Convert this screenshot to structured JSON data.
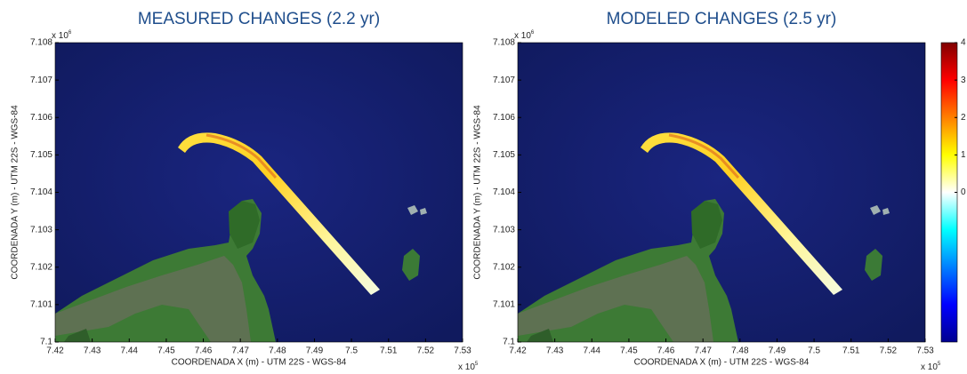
{
  "chart_data": [
    {
      "type": "map",
      "title": "MEASURED CHANGES (2.2 yr)",
      "xlabel": "COORDENADA X (m) - UTM 22S - WGS-84",
      "ylabel": "COORDENADA Y (m) - UTM 22S - WGS-84",
      "xlim": [
        7.42,
        7.53
      ],
      "ylim": [
        7.1,
        7.108
      ],
      "xticks": [
        7.42,
        7.43,
        7.44,
        7.45,
        7.46,
        7.47,
        7.48,
        7.49,
        7.5,
        7.51,
        7.52,
        7.53
      ],
      "yticks": [
        7.1,
        7.101,
        7.102,
        7.103,
        7.104,
        7.105,
        7.106,
        7.107,
        7.108
      ],
      "x_multiplier": {
        "base": "x 10",
        "exponent": "5"
      },
      "y_multiplier": {
        "base": "x 10",
        "exponent": "6"
      }
    },
    {
      "type": "map",
      "title": "MODELED CHANGES (2.5 yr)",
      "xlabel": "COORDENADA X (m) - UTM 22S - WGS-84",
      "ylabel": "COORDENADA Y (m) - UTM 22S - WGS-84",
      "xlim": [
        7.42,
        7.53
      ],
      "ylim": [
        7.1,
        7.108
      ],
      "xticks": [
        7.42,
        7.43,
        7.44,
        7.45,
        7.46,
        7.47,
        7.48,
        7.49,
        7.5,
        7.51,
        7.52,
        7.53
      ],
      "yticks": [
        7.1,
        7.101,
        7.102,
        7.103,
        7.104,
        7.105,
        7.106,
        7.107,
        7.108
      ],
      "x_multiplier": {
        "base": "x 10",
        "exponent": "5"
      },
      "y_multiplier": {
        "base": "x 10",
        "exponent": "6"
      }
    },
    {
      "type": "colorbar",
      "clim": [
        -4,
        4
      ],
      "cticks": [
        4,
        3,
        2,
        1,
        0
      ]
    }
  ]
}
